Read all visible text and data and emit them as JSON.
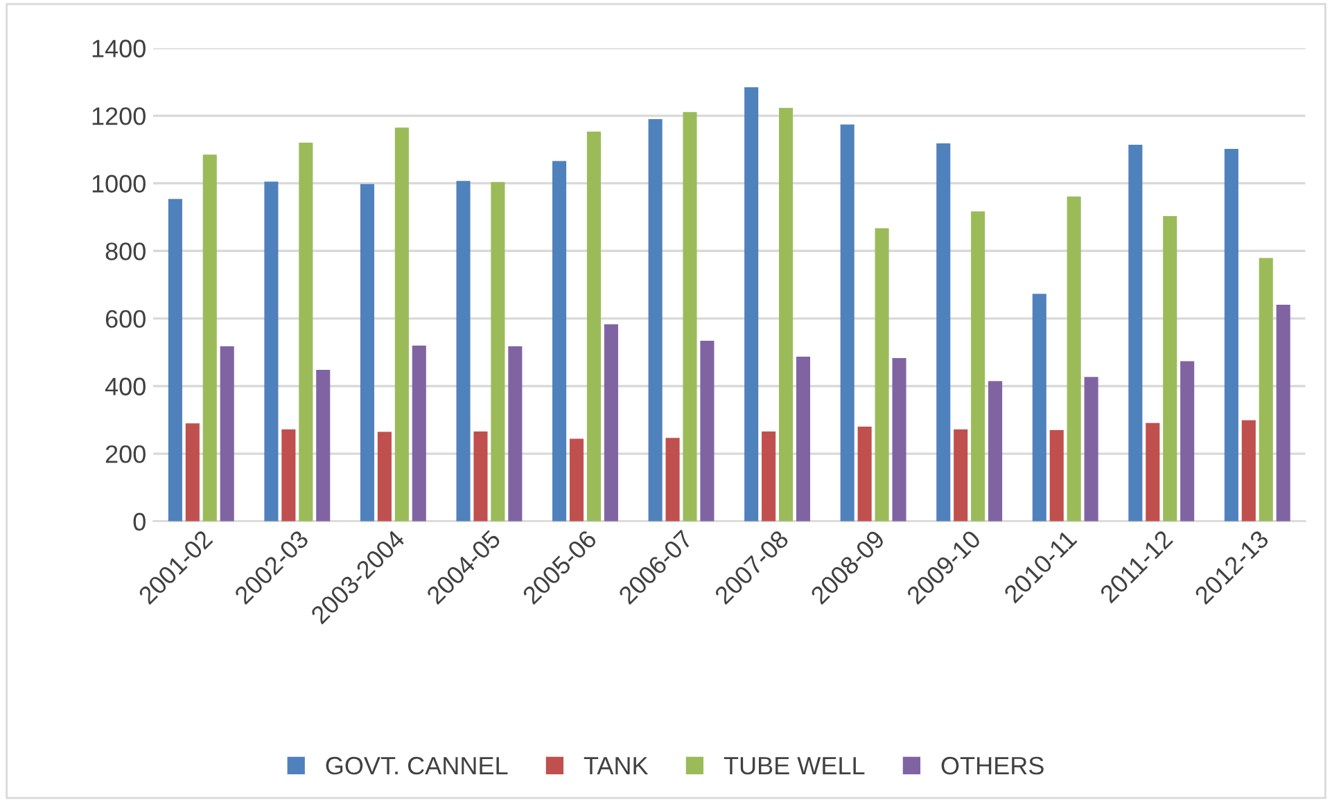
{
  "chart_data": {
    "type": "bar",
    "categories": [
      "2001-02",
      "2002-03",
      "2003-2004",
      "2004-05",
      "2005-06",
      "2006-07",
      "2007-08",
      "2008-09",
      "2009-10",
      "2010-11",
      "2011-12",
      "2012-13"
    ],
    "series": [
      {
        "name": "GOVT. CANNEL",
        "color": "#4f81bd",
        "values": [
          954,
          1005,
          998,
          1007,
          1066,
          1190,
          1284,
          1174,
          1118,
          673,
          1114,
          1102
        ]
      },
      {
        "name": "TANK",
        "color": "#c0504d",
        "values": [
          290,
          272,
          265,
          266,
          244,
          247,
          266,
          280,
          272,
          270,
          291,
          299
        ]
      },
      {
        "name": "TUBE WELL",
        "color": "#9bbb59",
        "values": [
          1085,
          1120,
          1165,
          1004,
          1153,
          1211,
          1223,
          867,
          917,
          961,
          903,
          779
        ]
      },
      {
        "name": "OTHERS",
        "color": "#8064a2",
        "values": [
          518,
          448,
          520,
          518,
          583,
          534,
          487,
          483,
          415,
          427,
          474,
          641
        ]
      }
    ],
    "ylim": [
      0,
      1400
    ],
    "yticks": [
      0,
      200,
      400,
      600,
      800,
      1000,
      1200,
      1400
    ],
    "grid": "y",
    "legend": "bottom"
  }
}
